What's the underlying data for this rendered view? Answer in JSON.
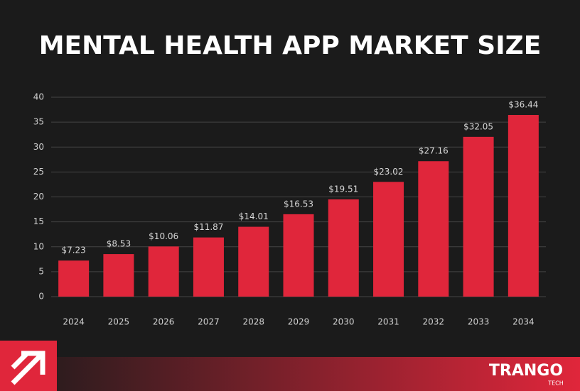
{
  "chart_data": {
    "type": "bar",
    "title": "MENTAL HEALTH APP MARKET SIZE",
    "categories": [
      "2024",
      "2025",
      "2026",
      "2027",
      "2028",
      "2029",
      "2030",
      "2031",
      "2032",
      "2033",
      "2034"
    ],
    "values": [
      7.23,
      8.53,
      10.06,
      11.87,
      14.01,
      16.53,
      19.51,
      23.02,
      27.16,
      32.05,
      36.44
    ],
    "value_labels": [
      "$7.23",
      "$8.53",
      "$10.06",
      "$11.87",
      "$14.01",
      "$16.53",
      "$19.51",
      "$23.02",
      "$27.16",
      "$32.05",
      "$36.44"
    ],
    "color": "#e0263b",
    "ylim": [
      0,
      40
    ],
    "yticks": [
      0,
      5,
      10,
      15,
      20,
      25,
      30,
      35,
      40
    ],
    "grid": true
  },
  "logo": {
    "name": "TRANGO",
    "tagline": "TECH"
  }
}
